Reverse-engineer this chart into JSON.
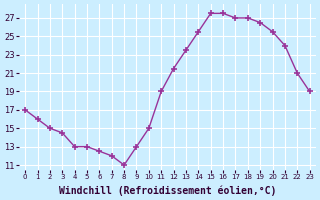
{
  "x": [
    0,
    1,
    2,
    3,
    4,
    5,
    6,
    7,
    8,
    9,
    10,
    11,
    12,
    13,
    14,
    15,
    16,
    17,
    18,
    19,
    20,
    21,
    22,
    23
  ],
  "y": [
    17,
    16,
    15,
    14.5,
    13,
    13,
    12.5,
    12,
    11,
    13,
    15,
    19,
    21.5,
    23.5,
    25.5,
    27.5,
    27.5,
    27,
    27,
    26.5,
    25.5,
    24,
    21,
    19
  ],
  "line_color": "#993399",
  "marker": "+",
  "bg_color": "#cceeff",
  "grid_color": "#ffffff",
  "xlabel": "Windchill (Refroidissement éolien,°C)",
  "xlabel_fontsize": 7.0,
  "xtick_positions": [
    0,
    1,
    2,
    3,
    4,
    5,
    6,
    7,
    8,
    9,
    10,
    11,
    12,
    13,
    14,
    15,
    16,
    17,
    18,
    19,
    20,
    21,
    22,
    23
  ],
  "xtick_labels": [
    "0",
    "1",
    "2",
    "3",
    "4",
    "5",
    "6",
    "7",
    "8",
    "9",
    "10",
    "11",
    "12",
    "13",
    "14",
    "15",
    "16",
    "17",
    "18",
    "19",
    "20",
    "21",
    "22",
    "23"
  ],
  "ytick_vals": [
    11,
    13,
    15,
    17,
    19,
    21,
    23,
    25,
    27
  ],
  "ylim": [
    10.5,
    28.5
  ],
  "xlim": [
    -0.5,
    23.5
  ]
}
